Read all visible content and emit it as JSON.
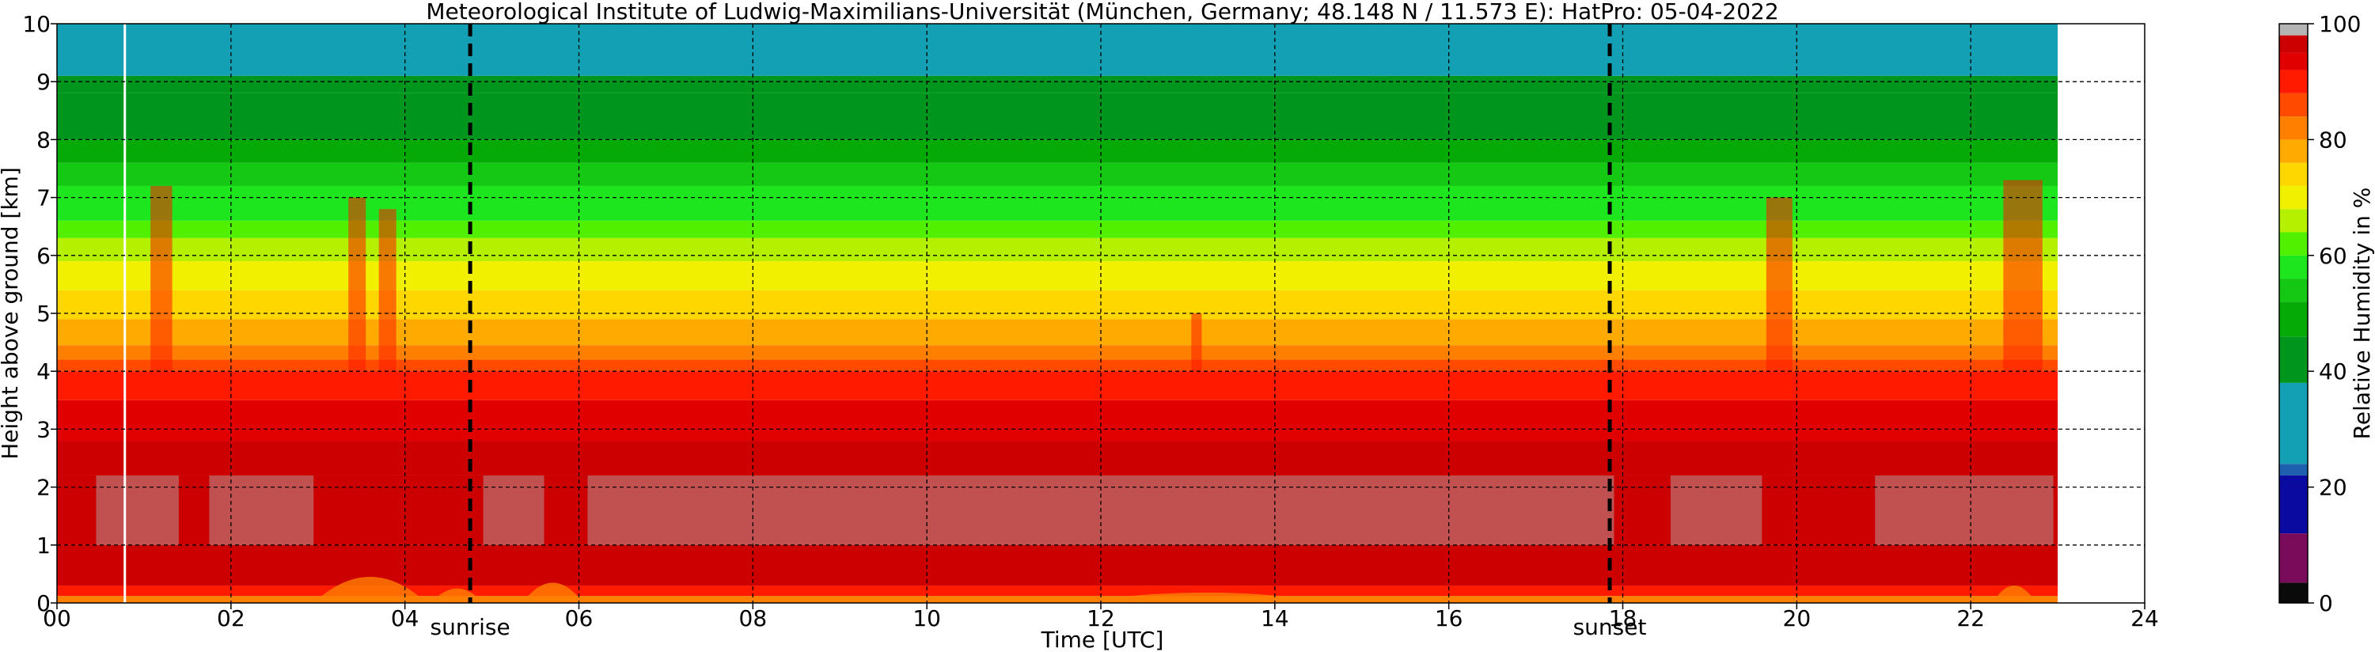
{
  "chart_data": {
    "type": "heatmap",
    "title": "Meteorological Institute of Ludwig-Maximilians-Universität (München, Germany; 48.148 N / 11.573 E):    HatPro: 05-04-2022",
    "xlabel": "Time [UTC]",
    "ylabel": "Height above ground [km]",
    "xlim": [
      0,
      24
    ],
    "ylim": [
      0,
      10
    ],
    "x_ticks": [
      "00",
      "02",
      "04",
      "06",
      "08",
      "10",
      "12",
      "14",
      "16",
      "18",
      "20",
      "22",
      "24"
    ],
    "y_ticks": [
      "0",
      "1",
      "2",
      "3",
      "4",
      "5",
      "6",
      "7",
      "8",
      "9",
      "10"
    ],
    "grid": true,
    "data_end_hour": 23.0,
    "gap_hour": 0.78,
    "colorbar": {
      "label": "Relative Humidity in %",
      "ticks": [
        "0",
        "20",
        "40",
        "60",
        "80",
        "100"
      ],
      "range": [
        0,
        100
      ],
      "stops": [
        {
          "from": 0,
          "to": 3.5,
          "color": "#0a0a0a"
        },
        {
          "from": 3.5,
          "to": 12,
          "color": "#7a0a5a"
        },
        {
          "from": 12,
          "to": 22,
          "color": "#0a0aa0"
        },
        {
          "from": 22,
          "to": 24,
          "color": "#1f5fb0"
        },
        {
          "from": 24,
          "to": 38,
          "color": "#14a0b4"
        },
        {
          "from": 38,
          "to": 46,
          "color": "#00961e"
        },
        {
          "from": 46,
          "to": 52,
          "color": "#06aa06"
        },
        {
          "from": 52,
          "to": 56,
          "color": "#14c814"
        },
        {
          "from": 56,
          "to": 60,
          "color": "#1ee61e"
        },
        {
          "from": 60,
          "to": 64,
          "color": "#50f000"
        },
        {
          "from": 64,
          "to": 68,
          "color": "#b4f000"
        },
        {
          "from": 68,
          "to": 72,
          "color": "#f0f000"
        },
        {
          "from": 72,
          "to": 76,
          "color": "#ffd700"
        },
        {
          "from": 76,
          "to": 80,
          "color": "#ffaa00"
        },
        {
          "from": 80,
          "to": 84,
          "color": "#ff8000"
        },
        {
          "from": 84,
          "to": 88,
          "color": "#ff4a00"
        },
        {
          "from": 88,
          "to": 92,
          "color": "#ff1a00"
        },
        {
          "from": 92,
          "to": 95,
          "color": "#e00000"
        },
        {
          "from": 95,
          "to": 98,
          "color": "#cc0000"
        },
        {
          "from": 98,
          "to": 100,
          "color": "#b4b4b4"
        }
      ]
    },
    "profile": [
      {
        "h0": 0,
        "h1": 0.12,
        "rh": 83
      },
      {
        "h0": 0.12,
        "h1": 0.3,
        "rh": 88
      },
      {
        "h0": 0.3,
        "h1": 1.0,
        "rh": 95
      },
      {
        "h0": 1.0,
        "h1": 2.2,
        "rh": 96
      },
      {
        "h0": 2.2,
        "h1": 2.8,
        "rh": 95
      },
      {
        "h0": 2.8,
        "h1": 3.5,
        "rh": 93
      },
      {
        "h0": 3.5,
        "h1": 4.0,
        "rh": 91
      },
      {
        "h0": 4.0,
        "h1": 4.2,
        "rh": 86
      },
      {
        "h0": 4.2,
        "h1": 4.45,
        "rh": 82
      },
      {
        "h0": 4.45,
        "h1": 4.9,
        "rh": 78
      },
      {
        "h0": 4.9,
        "h1": 5.4,
        "rh": 74
      },
      {
        "h0": 5.4,
        "h1": 5.9,
        "rh": 70
      },
      {
        "h0": 5.9,
        "h1": 6.3,
        "rh": 66
      },
      {
        "h0": 6.3,
        "h1": 6.6,
        "rh": 62
      },
      {
        "h0": 6.6,
        "h1": 7.2,
        "rh": 58
      },
      {
        "h0": 7.2,
        "h1": 7.6,
        "rh": 54
      },
      {
        "h0": 7.6,
        "h1": 8.0,
        "rh": 50
      },
      {
        "h0": 8.0,
        "h1": 8.8,
        "rh": 44
      },
      {
        "h0": 8.8,
        "h1": 9.1,
        "rh": 42
      },
      {
        "h0": 9.1,
        "h1": 10.0,
        "rh": 35
      }
    ],
    "saturated_layer": {
      "h0": 1.0,
      "h1": 2.2,
      "rh": 99,
      "segments": [
        [
          0.45,
          1.4
        ],
        [
          1.75,
          2.95
        ],
        [
          4.9,
          5.6
        ],
        [
          6.1,
          17.9
        ],
        [
          18.55,
          19.6
        ],
        [
          20.9,
          22.95
        ]
      ]
    },
    "surface_dry_bumps": [
      {
        "t": 3.6,
        "width": 1.3,
        "height": 0.45
      },
      {
        "t": 5.7,
        "width": 0.7,
        "height": 0.35
      },
      {
        "t": 4.6,
        "width": 0.6,
        "height": 0.25
      },
      {
        "t": 13.2,
        "width": 3.0,
        "height": 0.18
      },
      {
        "t": 22.5,
        "width": 0.5,
        "height": 0.3
      }
    ],
    "moist_plumes": [
      {
        "t": 1.2,
        "width": 0.25,
        "top": 7.2
      },
      {
        "t": 3.45,
        "width": 0.2,
        "top": 7.0
      },
      {
        "t": 3.8,
        "width": 0.2,
        "top": 6.8
      },
      {
        "t": 13.1,
        "width": 0.12,
        "top": 5.0
      },
      {
        "t": 19.8,
        "width": 0.3,
        "top": 7.0
      },
      {
        "t": 22.6,
        "width": 0.45,
        "top": 7.3
      }
    ],
    "annotations": [
      {
        "label": "sunrise",
        "t": 4.75,
        "style": "dashed-vertical"
      },
      {
        "label": "sunset",
        "t": 17.85,
        "style": "dashed-vertical"
      }
    ]
  }
}
